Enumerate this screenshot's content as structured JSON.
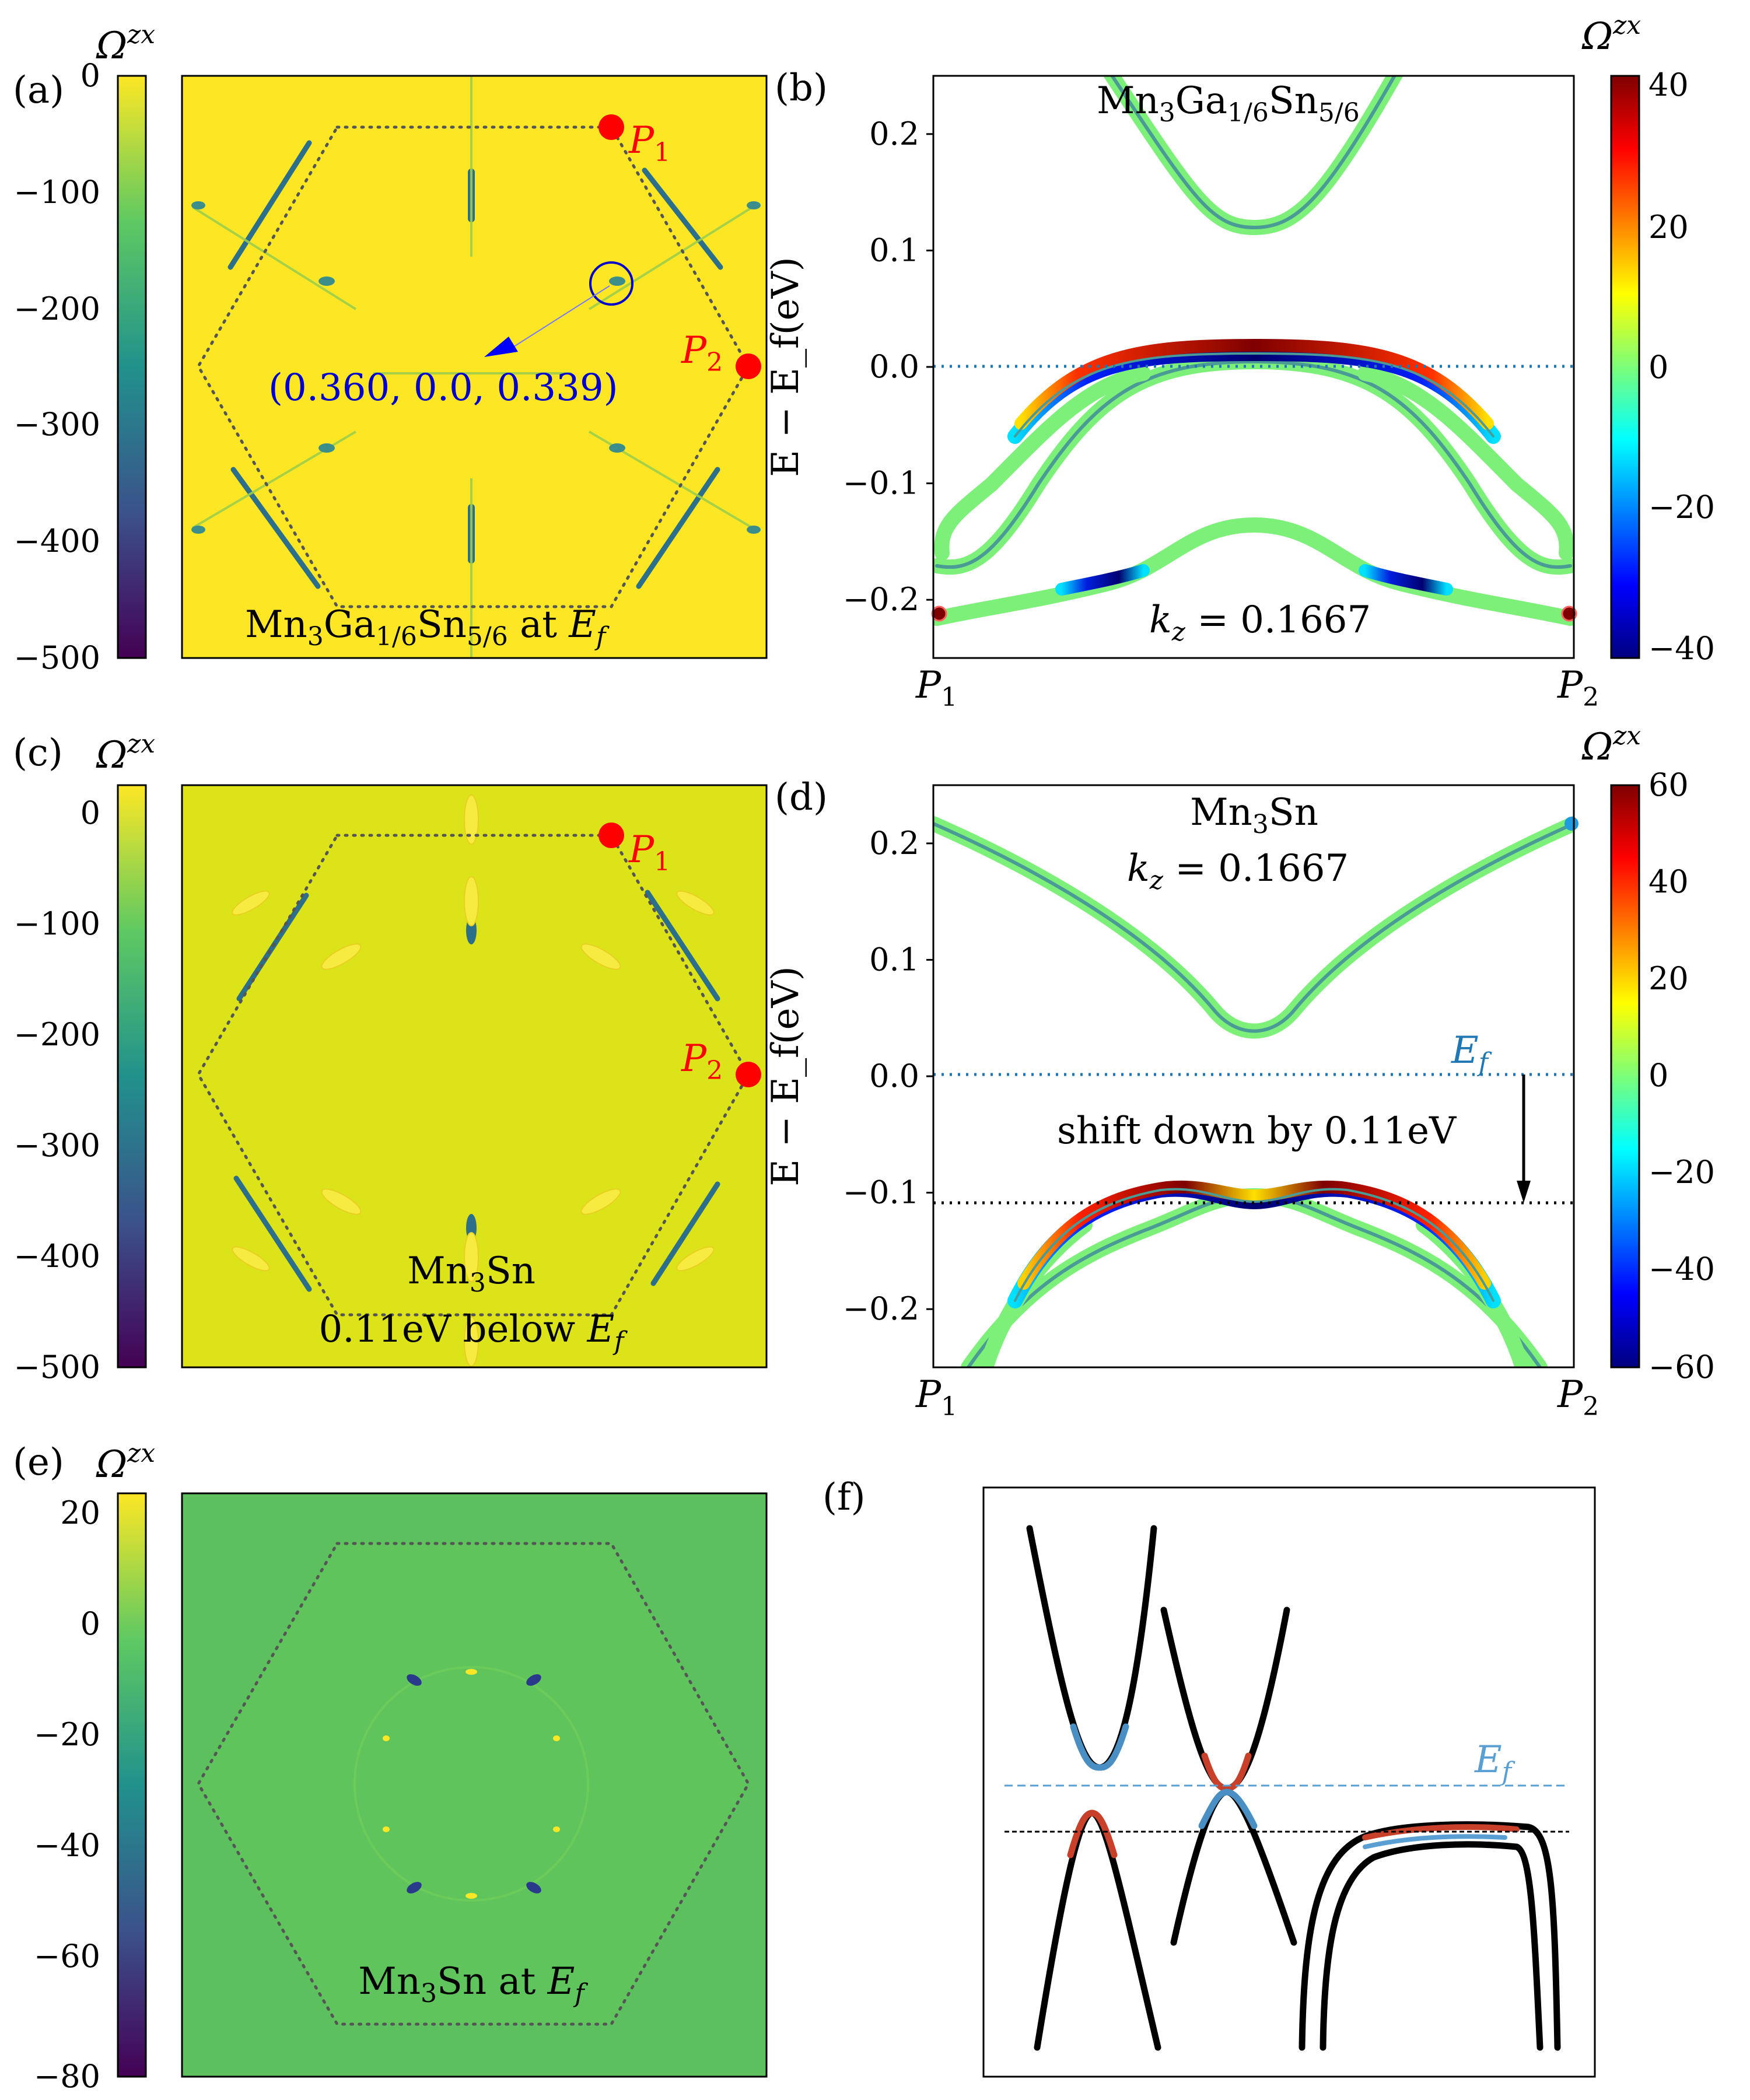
{
  "chart_data": [
    {
      "panel": "(a)",
      "type": "heatmap",
      "colorbar": {
        "label": "Ω",
        "label_sup": "zx",
        "ticks": [
          "0",
          "−100",
          "−200",
          "−300",
          "−400",
          "−500"
        ],
        "range": [
          -500,
          0
        ],
        "colormap": "viridis"
      },
      "annotations": {
        "p1": "P",
        "p1_sub": "1",
        "p2": "P",
        "p2_sub": "2",
        "coord": "(0.360, 0.0, 0.339)",
        "caption_parts": [
          "Mn",
          "3",
          "Ga",
          "1/6",
          "Sn",
          "5/6",
          " at ",
          "E",
          "f"
        ]
      }
    },
    {
      "panel": "(b)",
      "type": "line",
      "title_parts": [
        "Mn",
        "3",
        "Ga",
        "1/6",
        "Sn",
        "5/6"
      ],
      "ylabel": "E − E_f(eV)",
      "yticks": [
        "0.2",
        "0.1",
        "0.0",
        "−0.1",
        "−0.2"
      ],
      "ylim": [
        -0.25,
        0.25
      ],
      "xticks": [
        "P1",
        "P2"
      ],
      "kz_label": "k",
      "kz_sub": "z",
      "kz_value": " = 0.1667",
      "colorbar": {
        "label": "Ω",
        "label_sup": "zx",
        "ticks": [
          "40",
          "20",
          "0",
          "−20",
          "−40"
        ],
        "range": [
          -42,
          42
        ],
        "colormap": "jet"
      },
      "reference_lines": [
        {
          "y": 0.0,
          "style": "dotted",
          "color": "#1f77b4"
        }
      ]
    },
    {
      "panel": "(c)",
      "type": "heatmap",
      "colorbar": {
        "label": "Ω",
        "label_sup": "zx",
        "ticks": [
          "0",
          "−100",
          "−200",
          "−300",
          "−400",
          "−500"
        ],
        "range": [
          -500,
          25
        ],
        "colormap": "viridis"
      },
      "annotations": {
        "p1": "P",
        "p1_sub": "1",
        "p2": "P",
        "p2_sub": "2",
        "line1_parts": [
          "Mn",
          "3",
          "Sn"
        ],
        "line2_parts": [
          "0.11eV below ",
          "E",
          "f"
        ]
      }
    },
    {
      "panel": "(d)",
      "type": "line",
      "title_parts": [
        "Mn",
        "3",
        "Sn"
      ],
      "ylabel": "E − E_f(eV)",
      "yticks": [
        "0.2",
        "0.1",
        "0.0",
        "−0.1",
        "−0.2"
      ],
      "ylim": [
        -0.25,
        0.25
      ],
      "xticks": [
        "P1",
        "P2"
      ],
      "kz_label": "k",
      "kz_sub": "z",
      "kz_value": " = 0.1667",
      "ef_label": "E",
      "ef_sub": "f",
      "shift_text": "shift down by 0.11eV",
      "shift_ev": -0.11,
      "colorbar": {
        "label": "Ω",
        "label_sup": "zx",
        "ticks": [
          "60",
          "40",
          "20",
          "0",
          "−20",
          "−40",
          "−60"
        ],
        "range": [
          -60,
          60
        ],
        "colormap": "jet"
      },
      "reference_lines": [
        {
          "y": 0.0,
          "style": "dotted",
          "color": "#1f77b4"
        },
        {
          "y": -0.11,
          "style": "dotted",
          "color": "#000000"
        }
      ]
    },
    {
      "panel": "(e)",
      "type": "heatmap",
      "colorbar": {
        "label": "Ω",
        "label_sup": "zx",
        "ticks": [
          "20",
          "0",
          "−20",
          "−40",
          "−60",
          "−80"
        ],
        "range": [
          -80,
          25
        ],
        "colormap": "viridis"
      },
      "annotations": {
        "caption_parts": [
          "Mn",
          "3",
          "Sn at ",
          "E",
          "f"
        ]
      }
    },
    {
      "panel": "(f)",
      "type": "diagram",
      "ef_label": "E",
      "ef_sub": "f"
    }
  ],
  "colors": {
    "p_marker": "#ff0000",
    "coord_text": "#0000cc",
    "ef_blue": "#1f77b4",
    "band_green": "#7df07a",
    "band_core": "#4a9a96"
  }
}
